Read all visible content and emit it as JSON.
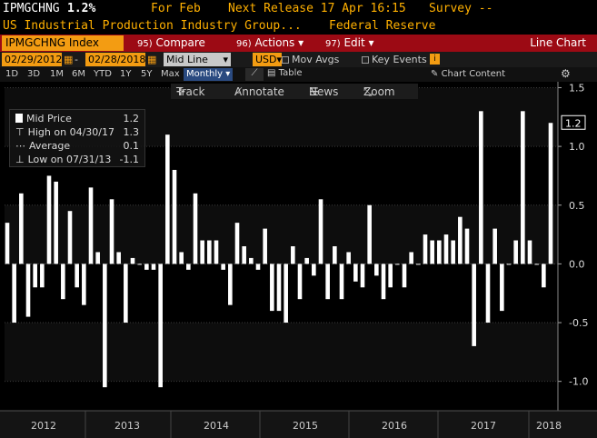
{
  "header": {
    "ticker": "IPMGCHNG",
    "value": "1.2%",
    "for_label": "For Feb",
    "next_release": "Next Release 17 Apr 16:15",
    "survey": "Survey --",
    "description": "US Industrial Production Industry Group...",
    "source": "Federal Reserve"
  },
  "command_bar": {
    "security": "IPMGCHNG Index",
    "compare": {
      "num": "95)",
      "label": "Compare"
    },
    "actions": {
      "num": "96)",
      "label": "Actions"
    },
    "edit": {
      "num": "97)",
      "label": "Edit"
    },
    "view": "Line Chart"
  },
  "date_row": {
    "start_date": "02/29/2012",
    "end_date": "02/28/2018",
    "mode": "Mid Line",
    "currency": "USD",
    "mov_avgs": "Mov Avgs",
    "key_events": "Key Events"
  },
  "period_row": {
    "periods": [
      "1D",
      "3D",
      "1M",
      "6M",
      "YTD",
      "1Y",
      "5Y",
      "Max"
    ],
    "frequency": "Monthly",
    "table": "Table",
    "chart_content": "Chart Content"
  },
  "tools": {
    "track": "Track",
    "annotate": "Annotate",
    "news": "News",
    "zoom": "Zoom"
  },
  "legend": {
    "mid_price": {
      "label": "Mid Price",
      "value": "1.2"
    },
    "high": {
      "label": "High on 04/30/17",
      "value": "1.3"
    },
    "average": {
      "label": "Average",
      "value": "0.1"
    },
    "low": {
      "label": "Low on 07/31/13",
      "value": "-1.1"
    }
  },
  "last_value_tag": "1.2",
  "colors": {
    "accent": "#f39c12",
    "bar": "#ffffff",
    "header_bar": "#9c0a14",
    "amber": "#ffb000"
  },
  "chart_data": {
    "type": "bar",
    "ylim": [
      -1.25,
      1.55
    ],
    "yticks": [
      "1.5",
      "1.0",
      "0.5",
      "0.0",
      "-0.5",
      "-1.0"
    ],
    "ytick_values": [
      1.5,
      1.0,
      0.5,
      0.0,
      -0.5,
      -1.0
    ],
    "year_labels": [
      "2012",
      "2013",
      "2014",
      "2015",
      "2016",
      "2017",
      "2018"
    ],
    "values": [
      0.35,
      -0.5,
      0.6,
      -0.45,
      -0.2,
      -0.2,
      0.75,
      0.7,
      -0.3,
      0.45,
      -0.2,
      -0.35,
      0.65,
      0.1,
      -1.05,
      0.55,
      0.1,
      -0.5,
      0.05,
      0.0,
      -0.05,
      -0.05,
      -1.05,
      1.1,
      0.8,
      0.1,
      -0.05,
      0.6,
      0.2,
      0.2,
      0.2,
      -0.05,
      -0.35,
      0.35,
      0.15,
      0.05,
      -0.05,
      0.3,
      -0.4,
      -0.4,
      -0.5,
      0.15,
      -0.3,
      0.05,
      -0.1,
      0.55,
      -0.3,
      0.15,
      -0.3,
      0.1,
      -0.15,
      -0.2,
      0.5,
      -0.1,
      -0.3,
      -0.2,
      0.0,
      -0.2,
      0.1,
      0.0,
      0.25,
      0.2,
      0.2,
      0.25,
      0.2,
      0.4,
      0.3,
      -0.7,
      1.3,
      -0.5,
      0.3,
      -0.4,
      0.0,
      0.2,
      1.3,
      0.2,
      0.0,
      -0.2,
      1.2
    ]
  }
}
